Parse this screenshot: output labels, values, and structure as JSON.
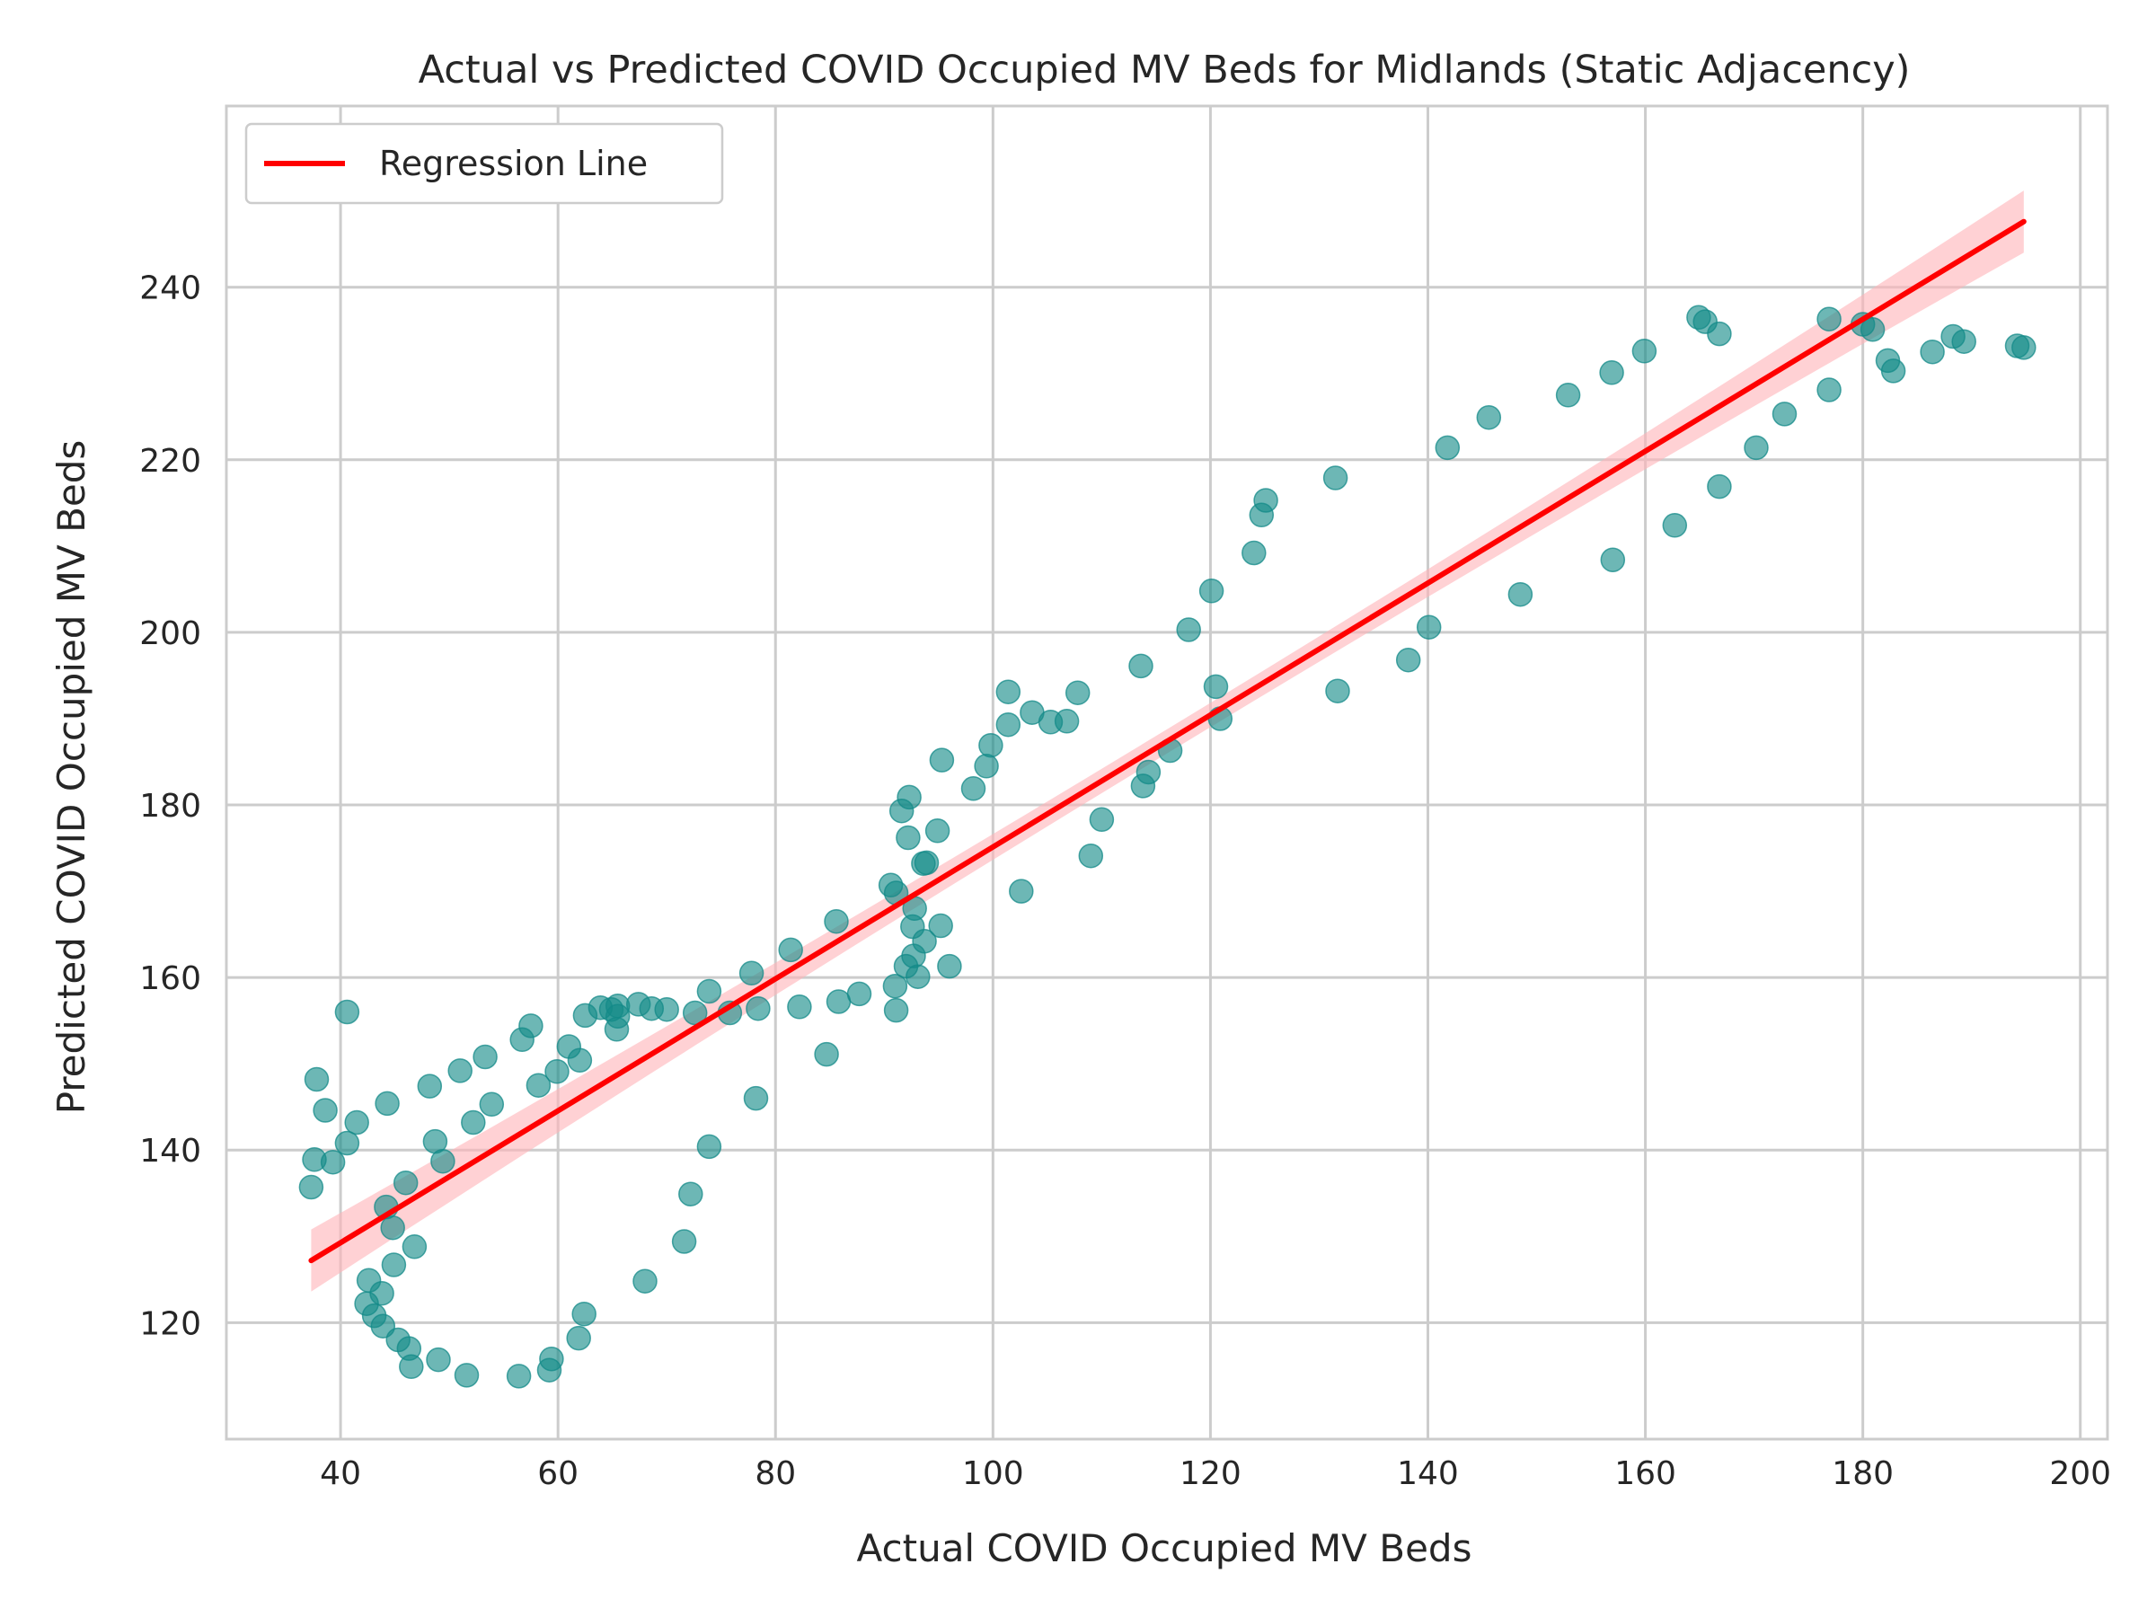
{
  "chart_data": {
    "type": "scatter",
    "title": "Actual vs Predicted COVID Occupied MV Beds for Midlands (Static Adjacency)",
    "xlabel": "Actual COVID Occupied MV Beds",
    "ylabel": "Predicted COVID Occupied MV Beds",
    "xlim": [
      29.5,
      202.5
    ],
    "ylim": [
      106.5,
      261
    ],
    "xticks": [
      40,
      60,
      80,
      100,
      120,
      140,
      160,
      180,
      200
    ],
    "yticks": [
      120,
      140,
      160,
      180,
      200,
      220,
      240
    ],
    "grid": true,
    "legend": {
      "position": "top-left",
      "entries": [
        "Regression Line"
      ]
    },
    "colors": {
      "points": "#138a88",
      "regression_line": "#ff0000",
      "confidence_band": "#ffb3b8",
      "grid": "#cccccc",
      "frame": "#cccccc"
    },
    "regression": {
      "x": [
        37.3,
        194.8
      ],
      "y": [
        127.2,
        247.6
      ],
      "ci_halfwidth_ends": 3.6,
      "ci_halfwidth_mid": 1.4
    },
    "points": [
      [
        37.3,
        135.7
      ],
      [
        37.6,
        138.9
      ],
      [
        37.8,
        148.2
      ],
      [
        38.6,
        144.6
      ],
      [
        39.3,
        138.6
      ],
      [
        40.6,
        156.0
      ],
      [
        40.6,
        140.8
      ],
      [
        41.5,
        143.2
      ],
      [
        42.4,
        122.2
      ],
      [
        42.6,
        124.9
      ],
      [
        43.1,
        120.8
      ],
      [
        43.8,
        123.4
      ],
      [
        43.9,
        119.6
      ],
      [
        44.2,
        133.4
      ],
      [
        44.3,
        145.4
      ],
      [
        44.8,
        131.0
      ],
      [
        44.9,
        126.7
      ],
      [
        45.3,
        118.0
      ],
      [
        46.0,
        136.2
      ],
      [
        46.3,
        117.0
      ],
      [
        46.5,
        114.9
      ],
      [
        46.8,
        128.8
      ],
      [
        48.2,
        147.4
      ],
      [
        48.7,
        141.0
      ],
      [
        49.0,
        115.7
      ],
      [
        49.4,
        138.7
      ],
      [
        51.0,
        149.2
      ],
      [
        51.6,
        113.9
      ],
      [
        52.2,
        143.2
      ],
      [
        53.3,
        150.8
      ],
      [
        53.9,
        145.3
      ],
      [
        56.4,
        113.8
      ],
      [
        56.7,
        152.8
      ],
      [
        57.5,
        154.4
      ],
      [
        58.2,
        147.5
      ],
      [
        59.2,
        114.5
      ],
      [
        59.4,
        115.8
      ],
      [
        59.9,
        149.1
      ],
      [
        61.0,
        152.0
      ],
      [
        61.9,
        118.2
      ],
      [
        62.0,
        150.4
      ],
      [
        62.4,
        121.0
      ],
      [
        62.5,
        155.6
      ],
      [
        63.9,
        156.5
      ],
      [
        64.9,
        156.3
      ],
      [
        65.5,
        156.7
      ],
      [
        65.4,
        154.0
      ],
      [
        65.5,
        155.5
      ],
      [
        67.4,
        156.9
      ],
      [
        68.0,
        124.8
      ],
      [
        68.6,
        156.4
      ],
      [
        70.0,
        156.3
      ],
      [
        71.6,
        129.4
      ],
      [
        72.2,
        134.9
      ],
      [
        72.6,
        155.9
      ],
      [
        73.9,
        158.4
      ],
      [
        73.9,
        140.4
      ],
      [
        75.8,
        155.9
      ],
      [
        77.8,
        160.5
      ],
      [
        78.2,
        146.0
      ],
      [
        78.4,
        156.4
      ],
      [
        81.4,
        163.2
      ],
      [
        82.2,
        156.6
      ],
      [
        84.7,
        151.1
      ],
      [
        85.6,
        166.5
      ],
      [
        85.8,
        157.2
      ],
      [
        87.7,
        158.1
      ],
      [
        90.6,
        170.7
      ],
      [
        91.1,
        169.8
      ],
      [
        91.0,
        159.0
      ],
      [
        91.1,
        156.2
      ],
      [
        91.6,
        179.3
      ],
      [
        92.0,
        161.3
      ],
      [
        92.2,
        176.2
      ],
      [
        92.3,
        180.9
      ],
      [
        92.6,
        165.9
      ],
      [
        92.7,
        162.5
      ],
      [
        92.8,
        168.0
      ],
      [
        93.1,
        160.1
      ],
      [
        93.6,
        173.2
      ],
      [
        93.9,
        173.3
      ],
      [
        93.7,
        164.2
      ],
      [
        94.9,
        177.0
      ],
      [
        95.2,
        166.0
      ],
      [
        95.3,
        185.2
      ],
      [
        96.0,
        161.3
      ],
      [
        98.2,
        181.9
      ],
      [
        99.4,
        184.5
      ],
      [
        99.8,
        186.9
      ],
      [
        101.4,
        193.1
      ],
      [
        101.4,
        189.3
      ],
      [
        102.6,
        170.0
      ],
      [
        103.6,
        190.7
      ],
      [
        105.3,
        189.6
      ],
      [
        106.8,
        189.7
      ],
      [
        107.8,
        193.0
      ],
      [
        109.0,
        174.1
      ],
      [
        110.0,
        178.3
      ],
      [
        113.6,
        196.1
      ],
      [
        113.8,
        182.2
      ],
      [
        114.3,
        183.8
      ],
      [
        116.3,
        186.3
      ],
      [
        118.0,
        200.3
      ],
      [
        120.1,
        204.8
      ],
      [
        120.5,
        193.7
      ],
      [
        120.9,
        190.0
      ],
      [
        124.0,
        209.2
      ],
      [
        124.7,
        213.6
      ],
      [
        125.1,
        215.3
      ],
      [
        131.5,
        217.9
      ],
      [
        131.7,
        193.2
      ],
      [
        138.2,
        196.8
      ],
      [
        140.1,
        200.6
      ],
      [
        141.8,
        221.4
      ],
      [
        145.6,
        224.9
      ],
      [
        148.5,
        204.4
      ],
      [
        152.9,
        227.5
      ],
      [
        156.9,
        230.1
      ],
      [
        157.0,
        208.4
      ],
      [
        159.9,
        232.6
      ],
      [
        162.7,
        212.4
      ],
      [
        164.9,
        236.5
      ],
      [
        165.5,
        236.0
      ],
      [
        166.8,
        234.6
      ],
      [
        166.8,
        216.9
      ],
      [
        170.2,
        221.4
      ],
      [
        172.8,
        225.3
      ],
      [
        176.9,
        228.1
      ],
      [
        176.9,
        236.3
      ],
      [
        180.0,
        235.7
      ],
      [
        180.9,
        235.1
      ],
      [
        182.3,
        231.5
      ],
      [
        182.8,
        230.3
      ],
      [
        186.4,
        232.5
      ],
      [
        188.3,
        234.3
      ],
      [
        189.3,
        233.7
      ],
      [
        194.2,
        233.2
      ],
      [
        194.8,
        233.0
      ]
    ]
  }
}
